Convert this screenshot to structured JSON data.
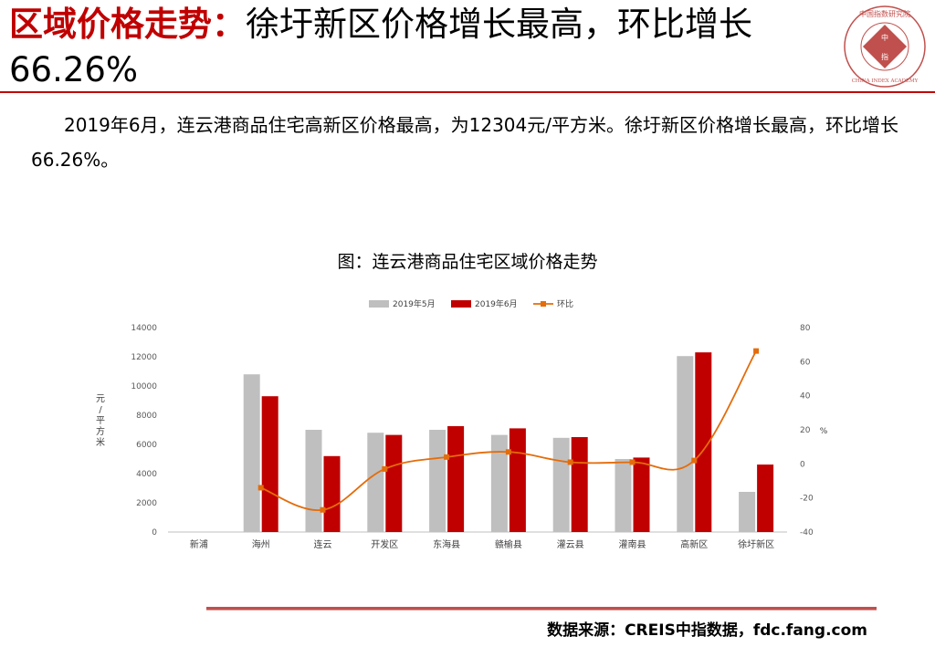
{
  "header": {
    "title_highlight": "区域价格走势：",
    "title_rest": "徐圩新区价格增长最高，环比增长66.26%",
    "logo_text_top": "中国指数研究院",
    "logo_text_bottom": "CHINA INDEX ACADEMY",
    "logo_center": "中指"
  },
  "body": {
    "paragraph": "2019年6月，连云港商品住宅高新区价格最高，为12304元/平方米。徐圩新区价格增长最高，环比增长66.26%。"
  },
  "chart_data": {
    "type": "bar",
    "title": "图：连云港商品住宅区域价格走势",
    "categories": [
      "新浦",
      "海州",
      "连云",
      "开发区",
      "东海县",
      "赣榆县",
      "灌云县",
      "灌南县",
      "高新区",
      "徐圩新区"
    ],
    "series": [
      {
        "name": "2019年5月",
        "type": "bar",
        "axis": "left",
        "color": "#bfbfbf",
        "values": [
          null,
          10800,
          7000,
          6800,
          7000,
          6650,
          6450,
          5000,
          12050,
          2750
        ]
      },
      {
        "name": "2019年6月",
        "type": "bar",
        "axis": "left",
        "color": "#c00000",
        "values": [
          null,
          9300,
          5200,
          6650,
          7250,
          7100,
          6500,
          5100,
          12304,
          4620
        ]
      },
      {
        "name": "环比",
        "type": "line",
        "axis": "right",
        "color": "#e46c0a",
        "values": [
          null,
          -14,
          -27,
          -3,
          4,
          7,
          1,
          1,
          2,
          66.26
        ]
      }
    ],
    "ylabel": "元/平方米",
    "y2label": "%",
    "ylim": [
      0,
      14000
    ],
    "yticks": [
      0,
      2000,
      4000,
      6000,
      8000,
      10000,
      12000,
      14000
    ],
    "y2lim": [
      -40,
      80
    ],
    "y2ticks": [
      -40,
      -20,
      0,
      20,
      40,
      60,
      80
    ],
    "legend": "top-center",
    "grid": false
  },
  "footer": {
    "source": "数据来源：CREIS中指数据，fdc.fang.com"
  }
}
